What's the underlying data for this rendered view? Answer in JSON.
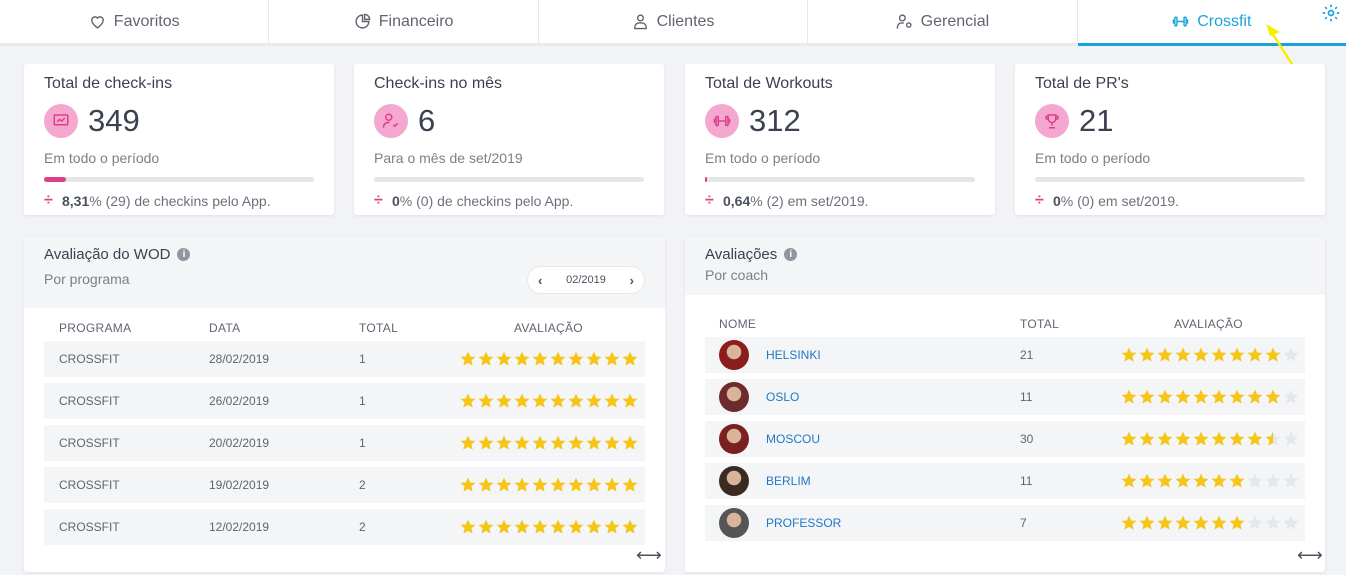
{
  "tabs": [
    {
      "label": "Favoritos",
      "icon": "heart-icon",
      "active": false
    },
    {
      "label": "Financeiro",
      "icon": "pie-chart-icon",
      "active": false
    },
    {
      "label": "Clientes",
      "icon": "user-icon",
      "active": false
    },
    {
      "label": "Gerencial",
      "icon": "user-gear-icon",
      "active": false
    },
    {
      "label": "Crossfit",
      "icon": "dumbbell-icon",
      "active": true
    }
  ],
  "colors": {
    "accent": "#19a3dd",
    "pink": "#e03e8a",
    "pink_light": "#f4a7cf",
    "star": "#f5c518",
    "star_empty": "#e6e7ea",
    "arrow": "#f5f000"
  },
  "stats": [
    {
      "title": "Total de check-ins",
      "value": "349",
      "icon": "chart-screen-icon",
      "sub": "Em todo o período",
      "progress": 0.083,
      "foot_pct": "8,31",
      "foot_rest": "% (29) de checkins pelo App."
    },
    {
      "title": "Check-ins no mês",
      "value": "6",
      "icon": "user-check-icon",
      "sub": "Para o mês de set/2019",
      "progress": 0,
      "foot_pct": "0",
      "foot_rest": "% (0) de checkins pelo App."
    },
    {
      "title": "Total de Workouts",
      "value": "312",
      "icon": "dumbbell-icon",
      "sub": "Em todo o período",
      "progress": 0.0064,
      "foot_pct": "0,64",
      "foot_rest": "% (2) em set/2019."
    },
    {
      "title": "Total de PR's",
      "value": "21",
      "icon": "trophy-icon",
      "sub": "Em todo o período",
      "progress": 0,
      "foot_pct": "0",
      "foot_rest": "% (0) em set/2019."
    }
  ],
  "wod": {
    "title": "Avaliação do WOD",
    "info": "i",
    "subtitle": "Por programa",
    "pager": "02/2019",
    "prev": "‹",
    "next": "›",
    "columns": {
      "programa": "PROGRAMA",
      "data": "DATA",
      "total": "TOTAL",
      "avaliacao": "AVALIAÇÃO"
    },
    "rows": [
      {
        "programa": "CROSSFIT",
        "data": "28/02/2019",
        "total": "1",
        "rating": 10
      },
      {
        "programa": "CROSSFIT",
        "data": "26/02/2019",
        "total": "1",
        "rating": 10
      },
      {
        "programa": "CROSSFIT",
        "data": "20/02/2019",
        "total": "1",
        "rating": 10
      },
      {
        "programa": "CROSSFIT",
        "data": "19/02/2019",
        "total": "2",
        "rating": 10
      },
      {
        "programa": "CROSSFIT",
        "data": "12/02/2019",
        "total": "2",
        "rating": 10
      }
    ],
    "expand": "⟷"
  },
  "coaches": {
    "title": "Avaliações",
    "info": "i",
    "subtitle": "Por coach",
    "columns": {
      "nome": "NOME",
      "total": "TOTAL",
      "avaliacao": "AVALIAÇÃO"
    },
    "rows": [
      {
        "nome": "HELSINKI",
        "total": "21",
        "rating": 9
      },
      {
        "nome": "OSLO",
        "total": "11",
        "rating": 9
      },
      {
        "nome": "MOSCOU",
        "total": "30",
        "rating": 8.5
      },
      {
        "nome": "BERLIM",
        "total": "11",
        "rating": 7
      },
      {
        "nome": "PROFESSOR",
        "total": "7",
        "rating": 7
      }
    ],
    "expand": "⟷"
  }
}
